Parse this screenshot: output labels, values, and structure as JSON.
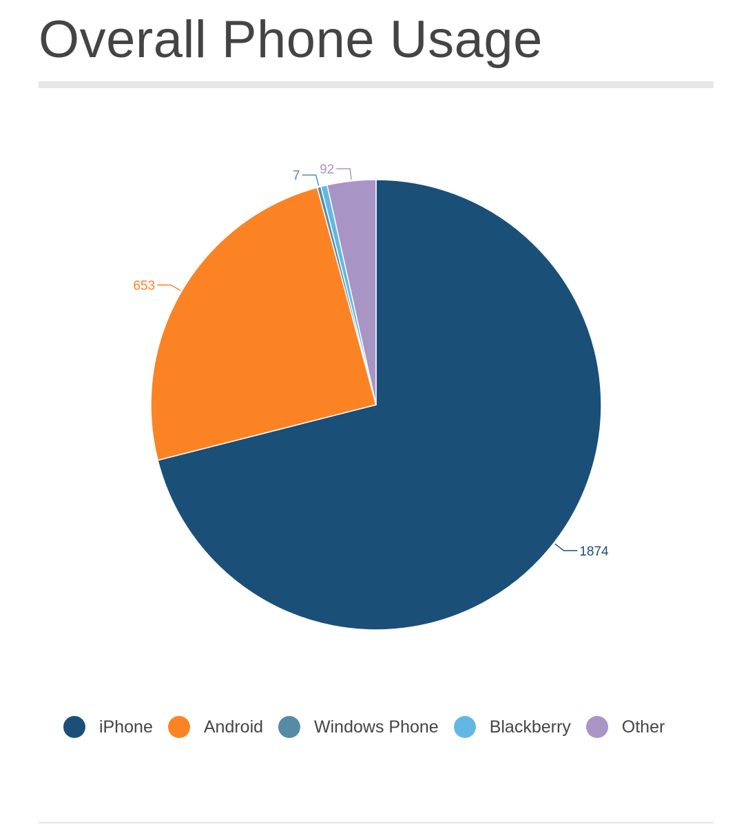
{
  "chart_data": {
    "type": "pie",
    "title": "Overall Phone Usage",
    "series": [
      {
        "name": "iPhone",
        "value": 1874,
        "color": "#1a4f78"
      },
      {
        "name": "Android",
        "value": 653,
        "color": "#fc8324"
      },
      {
        "name": "Windows Phone",
        "value": 7,
        "color": "#558ba6"
      },
      {
        "name": "Blackberry",
        "value": 12,
        "color": "#62b8e3"
      },
      {
        "name": "Other",
        "value": 92,
        "color": "#a994c6"
      }
    ],
    "data_labels": [
      "1874",
      "653",
      "7",
      "",
      "92"
    ],
    "legend_position": "bottom",
    "start_angle": "12 o'clock",
    "direction": "clockwise"
  }
}
